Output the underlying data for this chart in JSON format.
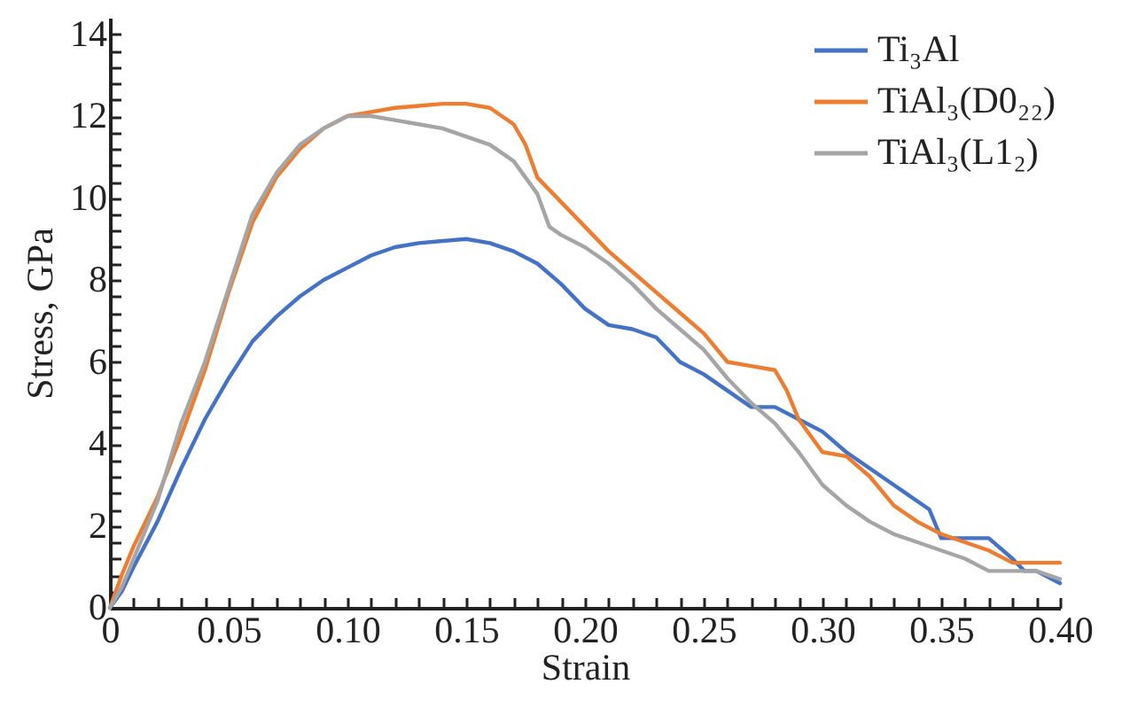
{
  "chart_data": {
    "type": "line",
    "xlabel": "Strain",
    "ylabel": "Stress, GPa",
    "legend": "top right",
    "grid": false,
    "marker": "none",
    "line_style": "solid",
    "xlim": [
      0,
      0.4
    ],
    "ylim": [
      0,
      14.4
    ],
    "xticks": [
      {
        "value": 0,
        "label": "0"
      },
      {
        "value": 0.01,
        "label": null
      },
      {
        "value": 0.02,
        "label": null
      },
      {
        "value": 0.03,
        "label": null
      },
      {
        "value": 0.04,
        "label": null
      },
      {
        "value": 0.05,
        "label": "0.05"
      },
      {
        "value": 0.06,
        "label": null
      },
      {
        "value": 0.07,
        "label": null
      },
      {
        "value": 0.08,
        "label": null
      },
      {
        "value": 0.09,
        "label": null
      },
      {
        "value": 0.1,
        "label": "0.10"
      },
      {
        "value": 0.11,
        "label": null
      },
      {
        "value": 0.12,
        "label": null
      },
      {
        "value": 0.13,
        "label": null
      },
      {
        "value": 0.14,
        "label": null
      },
      {
        "value": 0.15,
        "label": "0.15"
      },
      {
        "value": 0.16,
        "label": null
      },
      {
        "value": 0.17,
        "label": null
      },
      {
        "value": 0.18,
        "label": null
      },
      {
        "value": 0.19,
        "label": null
      },
      {
        "value": 0.2,
        "label": "0.20"
      },
      {
        "value": 0.21,
        "label": null
      },
      {
        "value": 0.22,
        "label": null
      },
      {
        "value": 0.23,
        "label": null
      },
      {
        "value": 0.24,
        "label": null
      },
      {
        "value": 0.25,
        "label": "0.25"
      },
      {
        "value": 0.26,
        "label": null
      },
      {
        "value": 0.27,
        "label": null
      },
      {
        "value": 0.28,
        "label": null
      },
      {
        "value": 0.29,
        "label": null
      },
      {
        "value": 0.3,
        "label": "0.30"
      },
      {
        "value": 0.31,
        "label": null
      },
      {
        "value": 0.32,
        "label": null
      },
      {
        "value": 0.33,
        "label": null
      },
      {
        "value": 0.34,
        "label": null
      },
      {
        "value": 0.35,
        "label": "0.35"
      },
      {
        "value": 0.36,
        "label": null
      },
      {
        "value": 0.37,
        "label": null
      },
      {
        "value": 0.38,
        "label": null
      },
      {
        "value": 0.39,
        "label": null
      },
      {
        "value": 0.4,
        "label": "0.40"
      }
    ],
    "yticks": [
      0,
      {
        "value": 0.4,
        "label": null
      },
      {
        "value": 0.8,
        "label": null
      },
      {
        "value": 1.2,
        "label": null
      },
      {
        "value": 1.6,
        "label": null
      },
      2,
      {
        "value": 2.4,
        "label": null
      },
      {
        "value": 2.8,
        "label": null
      },
      {
        "value": 3.2,
        "label": null
      },
      {
        "value": 3.6,
        "label": null
      },
      4,
      {
        "value": 4.4,
        "label": null
      },
      {
        "value": 4.8,
        "label": null
      },
      {
        "value": 5.2,
        "label": null
      },
      {
        "value": 5.6,
        "label": null
      },
      6,
      {
        "value": 6.4,
        "label": null
      },
      {
        "value": 6.8,
        "label": null
      },
      {
        "value": 7.2,
        "label": null
      },
      {
        "value": 7.6,
        "label": null
      },
      8,
      {
        "value": 8.4,
        "label": null
      },
      {
        "value": 8.8,
        "label": null
      },
      {
        "value": 9.2,
        "label": null
      },
      {
        "value": 9.6,
        "label": null
      },
      10,
      {
        "value": 10.4,
        "label": null
      },
      {
        "value": 10.8,
        "label": null
      },
      {
        "value": 11.2,
        "label": null
      },
      {
        "value": 11.6,
        "label": null
      },
      12,
      {
        "value": 12.4,
        "label": null
      },
      {
        "value": 12.8,
        "label": null
      },
      {
        "value": 13.2,
        "label": null
      },
      {
        "value": 13.6,
        "label": null
      },
      14
    ],
    "series": [
      {
        "name": "Ti₃Al",
        "color": "#4472c4",
        "x": [
          0,
          0.005,
          0.01,
          0.02,
          0.03,
          0.04,
          0.05,
          0.06,
          0.07,
          0.08,
          0.09,
          0.1,
          0.11,
          0.12,
          0.13,
          0.14,
          0.15,
          0.16,
          0.17,
          0.18,
          0.19,
          0.2,
          0.21,
          0.22,
          0.23,
          0.24,
          0.25,
          0.26,
          0.27,
          0.28,
          0.29,
          0.3,
          0.31,
          0.32,
          0.33,
          0.34,
          0.345,
          0.35,
          0.36,
          0.37,
          0.38,
          0.385,
          0.39,
          0.4
        ],
        "values": [
          0,
          0.4,
          1.0,
          2.1,
          3.4,
          4.6,
          5.6,
          6.5,
          7.1,
          7.6,
          8.0,
          8.3,
          8.6,
          8.8,
          8.9,
          8.95,
          9.0,
          8.9,
          8.7,
          8.4,
          7.9,
          7.3,
          6.9,
          6.8,
          6.6,
          6.0,
          5.7,
          5.3,
          4.9,
          4.9,
          4.6,
          4.3,
          3.8,
          3.4,
          3.0,
          2.6,
          2.4,
          1.7,
          1.7,
          1.7,
          1.2,
          0.9,
          0.9,
          0.6
        ]
      },
      {
        "name": "TiAl₃(D0₂₂)",
        "color": "#ed7d31",
        "x": [
          0,
          0.005,
          0.01,
          0.02,
          0.03,
          0.04,
          0.05,
          0.06,
          0.07,
          0.08,
          0.09,
          0.1,
          0.11,
          0.12,
          0.13,
          0.14,
          0.15,
          0.16,
          0.17,
          0.175,
          0.18,
          0.19,
          0.2,
          0.21,
          0.22,
          0.23,
          0.24,
          0.25,
          0.26,
          0.27,
          0.28,
          0.285,
          0.29,
          0.3,
          0.31,
          0.32,
          0.33,
          0.34,
          0.35,
          0.36,
          0.37,
          0.38,
          0.39,
          0.4
        ],
        "values": [
          0,
          0.8,
          1.5,
          2.7,
          4.2,
          5.8,
          7.7,
          9.4,
          10.5,
          11.2,
          11.7,
          12.0,
          12.1,
          12.2,
          12.25,
          12.3,
          12.3,
          12.2,
          11.8,
          11.3,
          10.5,
          9.9,
          9.3,
          8.7,
          8.2,
          7.7,
          7.2,
          6.7,
          6.0,
          5.9,
          5.8,
          5.3,
          4.6,
          3.8,
          3.7,
          3.2,
          2.5,
          2.1,
          1.8,
          1.6,
          1.4,
          1.1,
          1.1,
          1.1
        ]
      },
      {
        "name": "TiAl₃(L1₂)",
        "color": "#a5a5a5",
        "x": [
          0,
          0.005,
          0.01,
          0.02,
          0.03,
          0.04,
          0.05,
          0.06,
          0.07,
          0.08,
          0.09,
          0.1,
          0.11,
          0.12,
          0.13,
          0.14,
          0.15,
          0.16,
          0.17,
          0.18,
          0.185,
          0.19,
          0.2,
          0.21,
          0.22,
          0.23,
          0.24,
          0.25,
          0.26,
          0.27,
          0.28,
          0.29,
          0.3,
          0.31,
          0.32,
          0.33,
          0.34,
          0.35,
          0.36,
          0.37,
          0.38,
          0.39,
          0.4
        ],
        "values": [
          0,
          0.5,
          1.2,
          2.6,
          4.5,
          6.0,
          7.8,
          9.6,
          10.6,
          11.3,
          11.7,
          12.0,
          12.0,
          11.9,
          11.8,
          11.7,
          11.5,
          11.3,
          10.9,
          10.1,
          9.3,
          9.1,
          8.8,
          8.4,
          7.9,
          7.3,
          6.8,
          6.3,
          5.6,
          5.0,
          4.5,
          3.8,
          3.0,
          2.5,
          2.1,
          1.8,
          1.6,
          1.4,
          1.2,
          0.9,
          0.9,
          0.9,
          0.7
        ]
      }
    ]
  }
}
